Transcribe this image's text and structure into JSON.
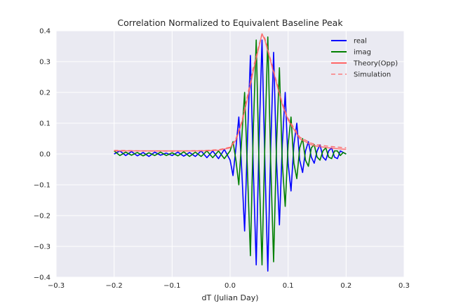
{
  "chart_data": {
    "type": "line",
    "title": "Correlation Normalized to Equivalent Baseline Peak",
    "xlabel": "dT (Julian Day)",
    "ylabel": "",
    "xlim": [
      -0.3,
      0.3
    ],
    "ylim": [
      -0.4,
      0.4
    ],
    "xticks": [
      -0.3,
      -0.2,
      -0.1,
      0.0,
      0.1,
      0.2,
      0.3
    ],
    "yticks": [
      -0.4,
      -0.3,
      -0.2,
      -0.1,
      0.0,
      0.1,
      0.2,
      0.3,
      0.4
    ],
    "xtick_labels": [
      "−0.3",
      "−0.2",
      "−0.1",
      "0.0",
      "0.1",
      "0.2",
      "0.3"
    ],
    "ytick_labels": [
      "−0.4",
      "−0.3",
      "−0.2",
      "−0.1",
      "0.0",
      "0.1",
      "0.2",
      "0.3",
      "0.4"
    ],
    "grid": true,
    "legend_position": "top-right",
    "series": [
      {
        "name": "real",
        "color": "#0000ff",
        "style": "solid",
        "x": [
          -0.2,
          -0.19,
          -0.18,
          -0.17,
          -0.16,
          -0.15,
          -0.14,
          -0.13,
          -0.12,
          -0.11,
          -0.1,
          -0.09,
          -0.08,
          -0.07,
          -0.06,
          -0.05,
          -0.04,
          -0.03,
          -0.02,
          -0.01,
          0.0,
          0.005,
          0.01,
          0.015,
          0.02,
          0.025,
          0.03,
          0.035,
          0.04,
          0.045,
          0.05,
          0.055,
          0.06,
          0.065,
          0.07,
          0.075,
          0.08,
          0.085,
          0.09,
          0.095,
          0.1,
          0.105,
          0.11,
          0.115,
          0.12,
          0.125,
          0.13,
          0.135,
          0.14,
          0.145,
          0.15,
          0.155,
          0.16,
          0.165,
          0.17,
          0.175,
          0.18,
          0.185,
          0.19,
          0.195,
          0.2
        ],
        "y": [
          0.0,
          0.01,
          -0.005,
          0.008,
          -0.006,
          0.005,
          -0.008,
          0.006,
          -0.004,
          0.003,
          -0.005,
          0.006,
          -0.007,
          0.005,
          -0.008,
          0.01,
          -0.012,
          0.01,
          -0.015,
          0.015,
          -0.02,
          -0.07,
          0.02,
          0.12,
          -0.05,
          -0.25,
          0.05,
          0.32,
          -0.05,
          -0.36,
          0.05,
          0.37,
          -0.03,
          -0.38,
          0.02,
          0.33,
          -0.02,
          -0.23,
          0.03,
          0.2,
          -0.03,
          -0.12,
          0.03,
          0.1,
          -0.02,
          -0.06,
          0.01,
          0.04,
          -0.01,
          -0.03,
          0.01,
          0.03,
          -0.01,
          -0.02,
          0.01,
          0.02,
          -0.01,
          -0.015,
          0.01,
          0.005,
          0.0
        ]
      },
      {
        "name": "imag",
        "color": "#008000",
        "style": "solid",
        "x": [
          -0.2,
          -0.19,
          -0.18,
          -0.17,
          -0.16,
          -0.15,
          -0.14,
          -0.13,
          -0.12,
          -0.11,
          -0.1,
          -0.09,
          -0.08,
          -0.07,
          -0.06,
          -0.05,
          -0.04,
          -0.03,
          -0.02,
          -0.01,
          0.0,
          0.005,
          0.01,
          0.015,
          0.02,
          0.025,
          0.03,
          0.035,
          0.04,
          0.045,
          0.05,
          0.055,
          0.06,
          0.065,
          0.07,
          0.075,
          0.08,
          0.085,
          0.09,
          0.095,
          0.1,
          0.105,
          0.11,
          0.115,
          0.12,
          0.125,
          0.13,
          0.135,
          0.14,
          0.145,
          0.15,
          0.155,
          0.16,
          0.165,
          0.17,
          0.175,
          0.18,
          0.185,
          0.19,
          0.195,
          0.2
        ],
        "y": [
          0.01,
          -0.005,
          0.006,
          -0.004,
          0.005,
          -0.006,
          0.004,
          -0.005,
          0.006,
          -0.005,
          0.004,
          -0.006,
          0.007,
          -0.008,
          0.006,
          -0.008,
          0.01,
          -0.012,
          0.01,
          -0.015,
          0.01,
          0.04,
          -0.02,
          -0.1,
          0.05,
          0.2,
          -0.06,
          -0.33,
          0.08,
          0.37,
          -0.05,
          -0.36,
          0.04,
          0.38,
          -0.03,
          -0.35,
          0.03,
          0.28,
          -0.03,
          -0.17,
          0.03,
          0.12,
          -0.03,
          -0.08,
          0.02,
          0.05,
          -0.02,
          -0.04,
          0.02,
          0.03,
          -0.01,
          -0.02,
          0.01,
          0.02,
          -0.01,
          -0.015,
          0.01,
          0.01,
          -0.005,
          0.005,
          0.0
        ]
      },
      {
        "name": "Theory(Opp)",
        "color": "#ff6666",
        "style": "solid",
        "x": [
          -0.2,
          -0.15,
          -0.1,
          -0.05,
          -0.02,
          0.0,
          0.01,
          0.02,
          0.03,
          0.04,
          0.05,
          0.055,
          0.06,
          0.07,
          0.08,
          0.09,
          0.1,
          0.11,
          0.12,
          0.13,
          0.14,
          0.15,
          0.17,
          0.2
        ],
        "y": [
          0.01,
          0.01,
          0.01,
          0.01,
          0.012,
          0.02,
          0.045,
          0.1,
          0.18,
          0.27,
          0.35,
          0.39,
          0.37,
          0.3,
          0.23,
          0.16,
          0.11,
          0.08,
          0.05,
          0.04,
          0.03,
          0.025,
          0.02,
          0.015
        ]
      },
      {
        "name": "Simulation",
        "color": "#ff6666",
        "style": "dashed",
        "x": [
          -0.2,
          -0.15,
          -0.1,
          -0.05,
          -0.02,
          0.0,
          0.01,
          0.02,
          0.03,
          0.04,
          0.05,
          0.055,
          0.06,
          0.07,
          0.08,
          0.09,
          0.1,
          0.11,
          0.12,
          0.13,
          0.14,
          0.15,
          0.17,
          0.2
        ],
        "y": [
          0.012,
          0.01,
          0.009,
          0.011,
          0.014,
          0.022,
          0.05,
          0.105,
          0.19,
          0.28,
          0.355,
          0.39,
          0.375,
          0.305,
          0.235,
          0.165,
          0.115,
          0.085,
          0.055,
          0.045,
          0.035,
          0.03,
          0.025,
          0.02
        ]
      }
    ]
  }
}
